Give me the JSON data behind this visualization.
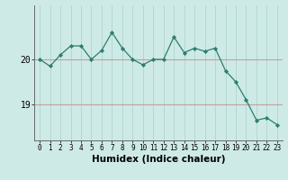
{
  "x": [
    0,
    1,
    2,
    3,
    4,
    5,
    6,
    7,
    8,
    9,
    10,
    11,
    12,
    13,
    14,
    15,
    16,
    17,
    18,
    19,
    20,
    21,
    22,
    23
  ],
  "y": [
    20.0,
    19.85,
    20.1,
    20.3,
    20.3,
    20.0,
    20.2,
    20.6,
    20.25,
    20.0,
    19.88,
    20.0,
    20.0,
    20.5,
    20.15,
    20.25,
    20.18,
    20.25,
    19.75,
    19.5,
    19.1,
    18.65,
    18.7,
    18.55
  ],
  "line_color": "#2d7d6e",
  "marker_color": "#2d7d6e",
  "bg_color": "#ceeae6",
  "grid_color_v": "#b0d4cf",
  "grid_color_h": "#c0a0a0",
  "axis_color": "#666666",
  "xlabel": "Humidex (Indice chaleur)",
  "yticks": [
    19,
    20
  ],
  "ylim": [
    18.2,
    21.2
  ],
  "xlim": [
    -0.5,
    23.5
  ],
  "xlabel_fontsize": 7.5,
  "tick_fontsize": 5.5,
  "ytick_fontsize": 7.0
}
